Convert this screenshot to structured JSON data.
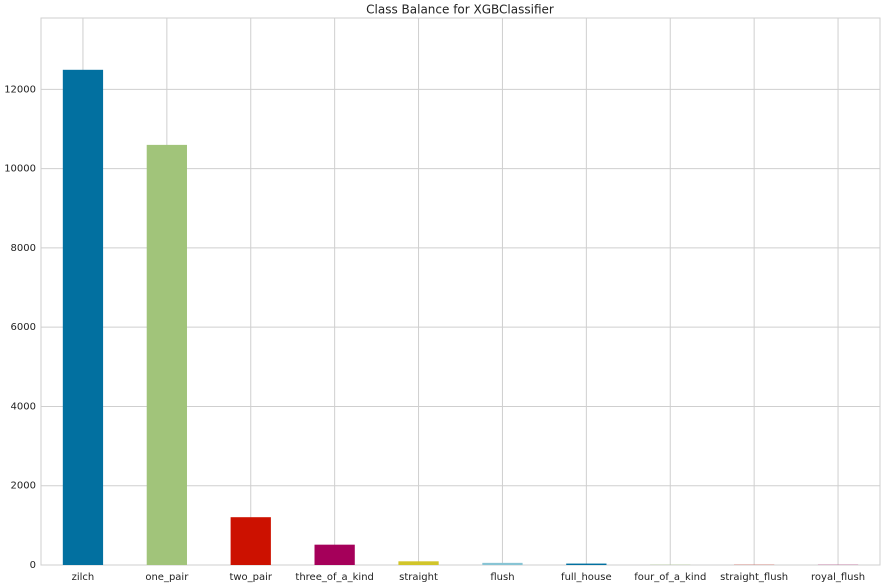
{
  "chart_data": {
    "type": "bar",
    "title": "Class Balance for XGBClassifier",
    "categories": [
      "zilch",
      "one_pair",
      "two_pair",
      "three_of_a_kind",
      "straight",
      "flush",
      "full_house",
      "four_of_a_kind",
      "straight_flush",
      "royal_flush"
    ],
    "values": [
      12493,
      10599,
      1206,
      513,
      93,
      54,
      36,
      6,
      5,
      5
    ],
    "colors": [
      "#0270a0",
      "#a1c47a",
      "#cc1100",
      "#a5005a",
      "#d1c52a",
      "#88c4d4",
      "#0270a0",
      "#a1c47a",
      "#cc1100",
      "#a5005a"
    ],
    "ylim": [
      0,
      13800
    ],
    "yticks": [
      0,
      2000,
      4000,
      6000,
      8000,
      10000,
      12000
    ],
    "grid": true
  }
}
